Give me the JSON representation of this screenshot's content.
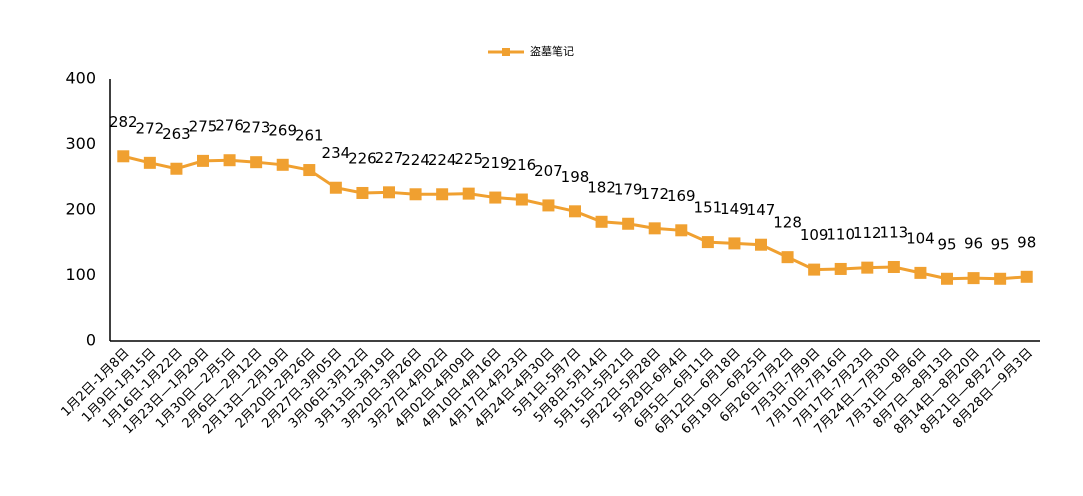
{
  "chart_data": {
    "type": "line",
    "categories": [
      "1月2日-1月8日",
      "1月9日-1月15日",
      "1月16日-1月22日",
      "1月23日—1月29日",
      "1月30日—2月5日",
      "2月6日—2月12日",
      "2月13日—2月19日",
      "2月20日-2月26日",
      "2月27日-3月05日",
      "3月06日-3月12日",
      "3月13日-3月19日",
      "3月20日-3月26日",
      "3月27日-4月02日",
      "4月02日-4月09日",
      "4月10日-4月16日",
      "4月17日-4月23日",
      "4月24日-4月30日",
      "5月1日-5月7日",
      "5月8日-5月14日",
      "5月15日-5月21日",
      "5月22日-5月28日",
      "5月29日-6月4日",
      "6月5日—6月11日",
      "6月12日—6月18日",
      "6月19日—6月25日",
      "6月26日-7月2日",
      "7月3日-7月9日",
      "7月10日-7月16日",
      "7月17日-7月23日",
      "7月24日—7月30日",
      "7月31日—8月6日",
      "8月7日—8月13日",
      "8月14日—8月20日",
      "8月21日—8月27日",
      "8月28日—9月3日"
    ],
    "series": [
      {
        "name": "盗墓笔记",
        "color": "#f0a030",
        "values": [
          282,
          272,
          263,
          275,
          276,
          273,
          269,
          261,
          234,
          226,
          227,
          224,
          224,
          225,
          219,
          216,
          207,
          198,
          182,
          179,
          172,
          169,
          151,
          149,
          147,
          128,
          109,
          110,
          112,
          113,
          104,
          95,
          96,
          95,
          98
        ]
      }
    ],
    "ylim": [
      0,
      400
    ],
    "yticks": [
      0,
      100,
      200,
      300,
      400
    ],
    "grid": false,
    "legend": "top"
  }
}
